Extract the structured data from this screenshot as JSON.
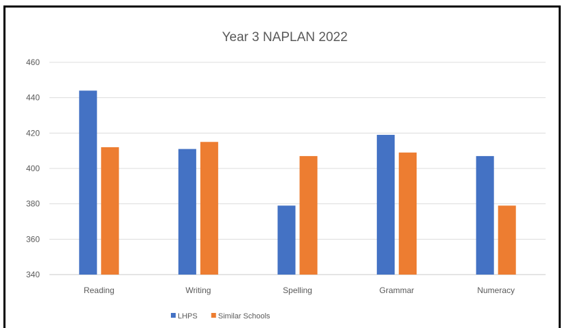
{
  "chart_data": {
    "type": "bar",
    "title": "Year 3 NAPLAN 2022",
    "xlabel": "",
    "ylabel": "",
    "categories": [
      "Reading",
      "Writing",
      "Spelling",
      "Grammar",
      "Numeracy"
    ],
    "series": [
      {
        "name": "LHPS",
        "values": [
          444,
          411,
          379,
          419,
          407
        ],
        "color": "#4472C4"
      },
      {
        "name": "Similar Schools",
        "values": [
          412,
          415,
          407,
          409,
          379
        ],
        "color": "#ED7D31"
      }
    ],
    "ylim": [
      340,
      460
    ],
    "yticks": [
      "340",
      "360",
      "380",
      "400",
      "420",
      "440",
      "460"
    ],
    "grid": true,
    "legend_position": "bottom"
  }
}
